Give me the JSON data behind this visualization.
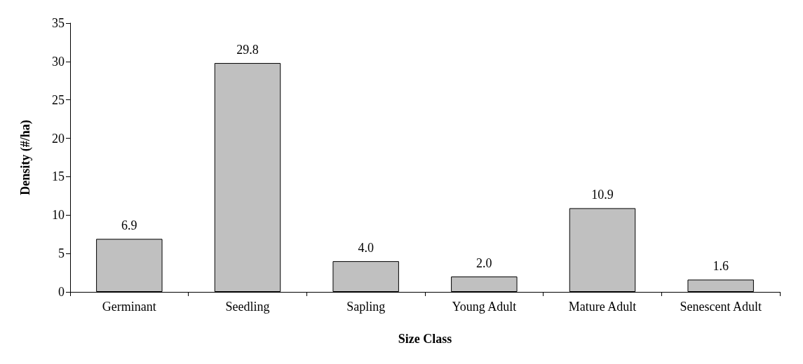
{
  "chart_data": {
    "type": "bar",
    "xlabel": "Size Class",
    "ylabel": "Density (#/ha)",
    "categories": [
      "Germinant",
      "Seedling",
      "Sapling",
      "Young Adult",
      "Mature Adult",
      "Senescent Adult"
    ],
    "values": [
      6.9,
      29.8,
      4.0,
      2.0,
      10.9,
      1.6
    ],
    "value_labels": [
      "6.9",
      "29.8",
      "4.0",
      "2.0",
      "10.9",
      "1.6"
    ],
    "color": "#c0c0c0",
    "ylim": [
      0,
      35
    ],
    "yticks": [
      0,
      5,
      10,
      15,
      20,
      25,
      30,
      35
    ],
    "grid": false
  }
}
